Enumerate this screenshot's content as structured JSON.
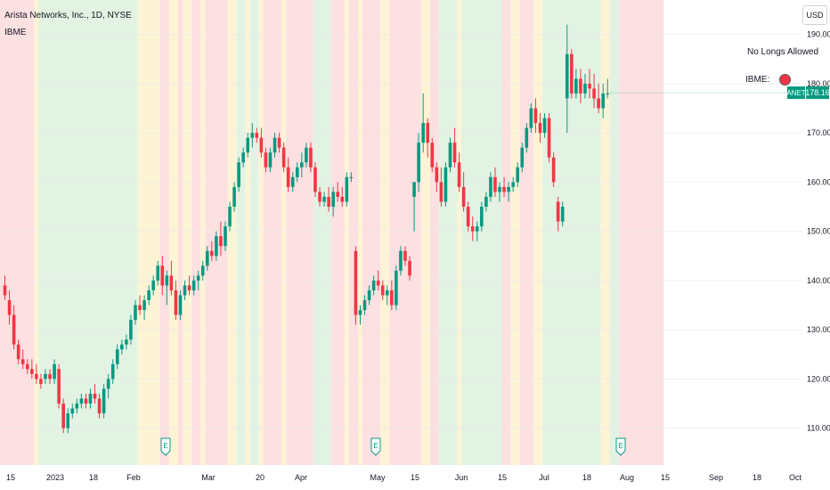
{
  "header": {
    "title": "Arista Networks, Inc., 1D, NYSE",
    "indicator": "IBME"
  },
  "currency_button": "USD",
  "indicator_panel": {
    "status": "No Longs Allowed",
    "label": "IBME:",
    "dot_color": "#f23645"
  },
  "price_tag": {
    "symbol": "ANET",
    "value": "178.16",
    "color": "#089981"
  },
  "colors": {
    "up": "#089981",
    "down": "#f23645",
    "bg_red": "#fde0e1",
    "bg_green": "#e2f2e3",
    "bg_yellow": "#fdf4d5",
    "earnings": "#089981"
  },
  "chart_data": {
    "type": "candlestick",
    "y_ticks": [
      "190.00",
      "180.00",
      "170.00",
      "160.00",
      "150.00",
      "140.00",
      "130.00",
      "120.00",
      "110.00"
    ],
    "ylim": [
      102.5,
      197.0
    ],
    "x_ticks": [
      "15",
      "2023",
      "18",
      "Feb",
      "Mar",
      "20",
      "Apr",
      "May",
      "15",
      "Jun",
      "15",
      "Jul",
      "18",
      "Aug",
      "15",
      "Sep",
      "18",
      "Oct"
    ],
    "earnings_marker": "E",
    "earnings_count": 3,
    "regimes": [
      {
        "to": 7,
        "regime": "red"
      },
      {
        "to": 8,
        "regime": "yellow"
      },
      {
        "to": 30,
        "regime": "green"
      },
      {
        "to": 35,
        "regime": "yellow"
      },
      {
        "to": 37,
        "regime": "red"
      },
      {
        "to": 39,
        "regime": "yellow"
      },
      {
        "to": 40,
        "regime": "red"
      },
      {
        "to": 42,
        "regime": "yellow"
      },
      {
        "to": 44,
        "regime": "red"
      },
      {
        "to": 45,
        "regime": "yellow"
      },
      {
        "to": 50,
        "regime": "red"
      },
      {
        "to": 52,
        "regime": "yellow"
      },
      {
        "to": 54,
        "regime": "green"
      },
      {
        "to": 55,
        "regime": "yellow"
      },
      {
        "to": 57,
        "regime": "green"
      },
      {
        "to": 58,
        "regime": "yellow"
      },
      {
        "to": 62,
        "regime": "red"
      },
      {
        "to": 63,
        "regime": "yellow"
      },
      {
        "to": 69,
        "regime": "red"
      },
      {
        "to": 73,
        "regime": "green"
      },
      {
        "to": 76,
        "regime": "red"
      },
      {
        "to": 77,
        "regime": "yellow"
      },
      {
        "to": 79,
        "regime": "red"
      },
      {
        "to": 80,
        "regime": "yellow"
      },
      {
        "to": 84,
        "regime": "red"
      },
      {
        "to": 86,
        "regime": "yellow"
      },
      {
        "to": 93,
        "regime": "red"
      },
      {
        "to": 95,
        "regime": "yellow"
      },
      {
        "to": 97,
        "regime": "red"
      },
      {
        "to": 101,
        "regime": "green"
      },
      {
        "to": 102,
        "regime": "yellow"
      },
      {
        "to": 111,
        "regime": "green"
      },
      {
        "to": 113,
        "regime": "red"
      },
      {
        "to": 115,
        "regime": "yellow"
      },
      {
        "to": 118,
        "regime": "red"
      },
      {
        "to": 120,
        "regime": "yellow"
      },
      {
        "to": 133,
        "regime": "green"
      },
      {
        "to": 135,
        "regime": "yellow"
      },
      {
        "to": 137,
        "regime": "green"
      },
      {
        "to": 147,
        "regime": "red"
      }
    ],
    "candles": [
      [
        139,
        141,
        136,
        137
      ],
      [
        136,
        138,
        131,
        133
      ],
      [
        133,
        135,
        126,
        127
      ],
      [
        127,
        128,
        123,
        124
      ],
      [
        124,
        126,
        122,
        123
      ],
      [
        123,
        124,
        121,
        122
      ],
      [
        122,
        124,
        120,
        121
      ],
      [
        121,
        123,
        119,
        120
      ],
      [
        120,
        121,
        118,
        119
      ],
      [
        120,
        122,
        119,
        121
      ],
      [
        121,
        122,
        119,
        120
      ],
      [
        120,
        124,
        119,
        123
      ],
      [
        122,
        123,
        114,
        115
      ],
      [
        115,
        116,
        109,
        110
      ],
      [
        110,
        114,
        109,
        113
      ],
      [
        113,
        115,
        112,
        114
      ],
      [
        114,
        116,
        113,
        115
      ],
      [
        115,
        117,
        114,
        116
      ],
      [
        116,
        117,
        114,
        115
      ],
      [
        115,
        118,
        114,
        117
      ],
      [
        117,
        119,
        115,
        116
      ],
      [
        116,
        117,
        112,
        113
      ],
      [
        113,
        119,
        112,
        118
      ],
      [
        118,
        121,
        116,
        120
      ],
      [
        120,
        124,
        119,
        123
      ],
      [
        123,
        127,
        122,
        126
      ],
      [
        126,
        128,
        125,
        127
      ],
      [
        127,
        129,
        126,
        128
      ],
      [
        128,
        133,
        127,
        132
      ],
      [
        132,
        136,
        131,
        135
      ],
      [
        135,
        137,
        133,
        134
      ],
      [
        134,
        137,
        132,
        136
      ],
      [
        136,
        139,
        135,
        138
      ],
      [
        138,
        141,
        137,
        140
      ],
      [
        140,
        144,
        139,
        143
      ],
      [
        143,
        145,
        137,
        139
      ],
      [
        139,
        142,
        135,
        141
      ],
      [
        141,
        144,
        137,
        138
      ],
      [
        138,
        140,
        132,
        133
      ],
      [
        133,
        138,
        132,
        137
      ],
      [
        137,
        140,
        136,
        139
      ],
      [
        139,
        141,
        137,
        138
      ],
      [
        138,
        141,
        137,
        140
      ],
      [
        140,
        142,
        138,
        141
      ],
      [
        141,
        144,
        140,
        143
      ],
      [
        143,
        147,
        142,
        146
      ],
      [
        146,
        148,
        144,
        145
      ],
      [
        145,
        150,
        144,
        149
      ],
      [
        149,
        152,
        145,
        147
      ],
      [
        147,
        152,
        146,
        151
      ],
      [
        151,
        156,
        150,
        155
      ],
      [
        155,
        160,
        154,
        159
      ],
      [
        159,
        165,
        158,
        164
      ],
      [
        164,
        167,
        163,
        166
      ],
      [
        166,
        170,
        165,
        169
      ],
      [
        169,
        172,
        167,
        170
      ],
      [
        170,
        171,
        168,
        169
      ],
      [
        169,
        171,
        165,
        166
      ],
      [
        166,
        167,
        162,
        163
      ],
      [
        163,
        167,
        162,
        166
      ],
      [
        166,
        170,
        165,
        169
      ],
      [
        169,
        170,
        166,
        167
      ],
      [
        167,
        168,
        162,
        163
      ],
      [
        163,
        165,
        158,
        159
      ],
      [
        159,
        162,
        158,
        161
      ],
      [
        161,
        164,
        160,
        163
      ],
      [
        163,
        166,
        161,
        164
      ],
      [
        164,
        168,
        163,
        167
      ],
      [
        167,
        168,
        162,
        163
      ],
      [
        163,
        164,
        157,
        158
      ],
      [
        158,
        159,
        155,
        156
      ],
      [
        156,
        158,
        155,
        157
      ],
      [
        157,
        159,
        154,
        155
      ],
      [
        155,
        159,
        153,
        158
      ],
      [
        158,
        160,
        156,
        157
      ],
      [
        157,
        159,
        155,
        156
      ],
      [
        156,
        162,
        155,
        161
      ],
      [
        161,
        162,
        160,
        161
      ],
      [
        146,
        147,
        131,
        133
      ],
      [
        133,
        135,
        131,
        134
      ],
      [
        134,
        137,
        133,
        136
      ],
      [
        136,
        139,
        135,
        138
      ],
      [
        138,
        141,
        137,
        140
      ],
      [
        140,
        142,
        138,
        139
      ],
      [
        139,
        140,
        136,
        137
      ],
      [
        137,
        139,
        135,
        138
      ],
      [
        138,
        140,
        134,
        135
      ],
      [
        135,
        143,
        134,
        142
      ],
      [
        142,
        147,
        141,
        146
      ],
      [
        146,
        147,
        143,
        144
      ],
      [
        144,
        145,
        140,
        141
      ],
      [
        157,
        160,
        150,
        160
      ],
      [
        160,
        170,
        158,
        168
      ],
      [
        168,
        178,
        166,
        172
      ],
      [
        172,
        173,
        165,
        168
      ],
      [
        168,
        169,
        162,
        163
      ],
      [
        163,
        164,
        158,
        160
      ],
      [
        160,
        163,
        155,
        156
      ],
      [
        156,
        164,
        155,
        163
      ],
      [
        163,
        169,
        162,
        168
      ],
      [
        168,
        171,
        163,
        164
      ],
      [
        164,
        166,
        158,
        159
      ],
      [
        159,
        162,
        154,
        155
      ],
      [
        155,
        156,
        150,
        151
      ],
      [
        151,
        153,
        148,
        150
      ],
      [
        150,
        152,
        148,
        151
      ],
      [
        151,
        156,
        150,
        155
      ],
      [
        155,
        158,
        154,
        157
      ],
      [
        157,
        162,
        156,
        161
      ],
      [
        161,
        163,
        157,
        158
      ],
      [
        158,
        160,
        156,
        159
      ],
      [
        159,
        161,
        157,
        158
      ],
      [
        158,
        160,
        156,
        159
      ],
      [
        159,
        161,
        158,
        160
      ],
      [
        160,
        164,
        159,
        163
      ],
      [
        163,
        168,
        162,
        167
      ],
      [
        167,
        172,
        166,
        171
      ],
      [
        171,
        176,
        170,
        175
      ],
      [
        175,
        177,
        170,
        172
      ],
      [
        172,
        174,
        168,
        170
      ],
      [
        170,
        174,
        169,
        173
      ],
      [
        173,
        174,
        164,
        165
      ],
      [
        165,
        166,
        159,
        160
      ],
      [
        156,
        157,
        150,
        152
      ],
      [
        152,
        156,
        151,
        155
      ],
      [
        177,
        192,
        170,
        186
      ],
      [
        186,
        187,
        177,
        178
      ],
      [
        178,
        183,
        177,
        181
      ],
      [
        181,
        183,
        176,
        178
      ],
      [
        178,
        182,
        177,
        180
      ],
      [
        180,
        183,
        177,
        179
      ],
      [
        179,
        182,
        175,
        177
      ],
      [
        177,
        180,
        174,
        175
      ],
      [
        175,
        180,
        173,
        178
      ],
      [
        178,
        181,
        177,
        178
      ]
    ],
    "gaps": [
      0,
      0,
      0,
      0,
      0,
      0,
      0,
      0,
      0,
      0,
      0,
      0,
      0,
      0,
      0,
      0,
      0,
      0,
      0,
      0,
      0,
      0,
      0,
      0,
      0,
      0,
      0,
      0,
      0,
      0,
      0,
      0,
      0,
      0,
      0,
      0,
      0,
      0,
      0,
      0,
      0,
      0,
      0,
      0,
      0,
      0,
      0,
      0,
      0,
      0,
      0,
      0,
      0,
      0,
      0,
      0,
      0,
      0,
      0,
      0,
      0,
      0,
      0,
      0,
      0,
      0,
      0,
      0,
      0,
      0,
      0,
      0,
      0,
      0,
      0,
      0,
      0,
      0,
      0,
      0,
      0,
      0,
      0,
      0,
      0,
      0,
      0,
      0,
      0,
      0,
      0,
      0,
      0,
      0,
      0,
      0,
      0,
      0,
      0,
      0,
      0,
      0,
      0,
      0,
      0,
      0,
      0,
      0,
      0,
      0,
      0,
      0,
      0,
      0,
      0,
      0,
      0,
      0,
      0,
      0,
      0,
      0,
      0,
      0,
      0,
      0,
      0,
      0,
      0,
      0,
      0,
      0,
      0,
      0,
      0,
      0,
      0,
      0,
      0,
      0,
      0,
      0,
      0,
      0,
      0,
      0,
      0
    ]
  }
}
